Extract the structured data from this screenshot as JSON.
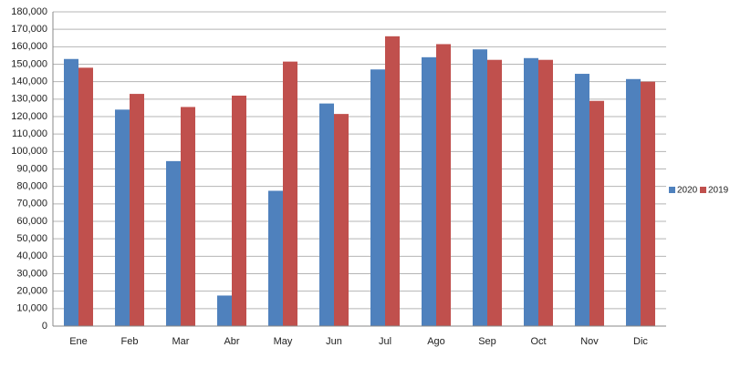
{
  "chart_data": {
    "type": "bar",
    "categories": [
      "Ene",
      "Feb",
      "Mar",
      "Abr",
      "May",
      "Jun",
      "Jul",
      "Ago",
      "Sep",
      "Oct",
      "Nov",
      "Dic"
    ],
    "series": [
      {
        "name": "2020",
        "color": "#4f81bd",
        "values": [
          153000,
          124000,
          94500,
          17500,
          77500,
          127500,
          147000,
          154000,
          158500,
          153500,
          144500,
          141500
        ]
      },
      {
        "name": "2019",
        "color": "#c0504d",
        "values": [
          148000,
          133000,
          125500,
          132000,
          151500,
          121500,
          166000,
          161500,
          152500,
          152500,
          129000,
          140000
        ]
      }
    ],
    "ylim": [
      0,
      180000
    ],
    "yticks": [
      0,
      {
        "value": 10000,
        "label": "10,000"
      },
      {
        "value": 20000,
        "label": "20,000"
      },
      {
        "value": 30000,
        "label": "30,000"
      },
      {
        "value": 40000,
        "label": "40,000"
      },
      {
        "value": 50000,
        "label": "50,000"
      },
      {
        "value": 60000,
        "label": "60,000"
      },
      {
        "value": 70000,
        "label": "70,000"
      },
      {
        "value": 80000,
        "label": "80,000"
      },
      {
        "value": 90000,
        "label": "90,000"
      },
      {
        "value": 100000,
        "label": "100,000"
      },
      {
        "value": 110000,
        "label": "110,000"
      },
      {
        "value": 120000,
        "label": "120,000"
      },
      {
        "value": 130000,
        "label": "130,000"
      },
      {
        "value": 140000,
        "label": "140,000"
      },
      {
        "value": 150000,
        "label": "150,000"
      },
      {
        "value": 160000,
        "label": "160,000"
      },
      {
        "value": 170000,
        "label": "170,000"
      },
      {
        "value": 180000,
        "label": "180,000"
      }
    ],
    "grid": true,
    "legend": "right"
  }
}
